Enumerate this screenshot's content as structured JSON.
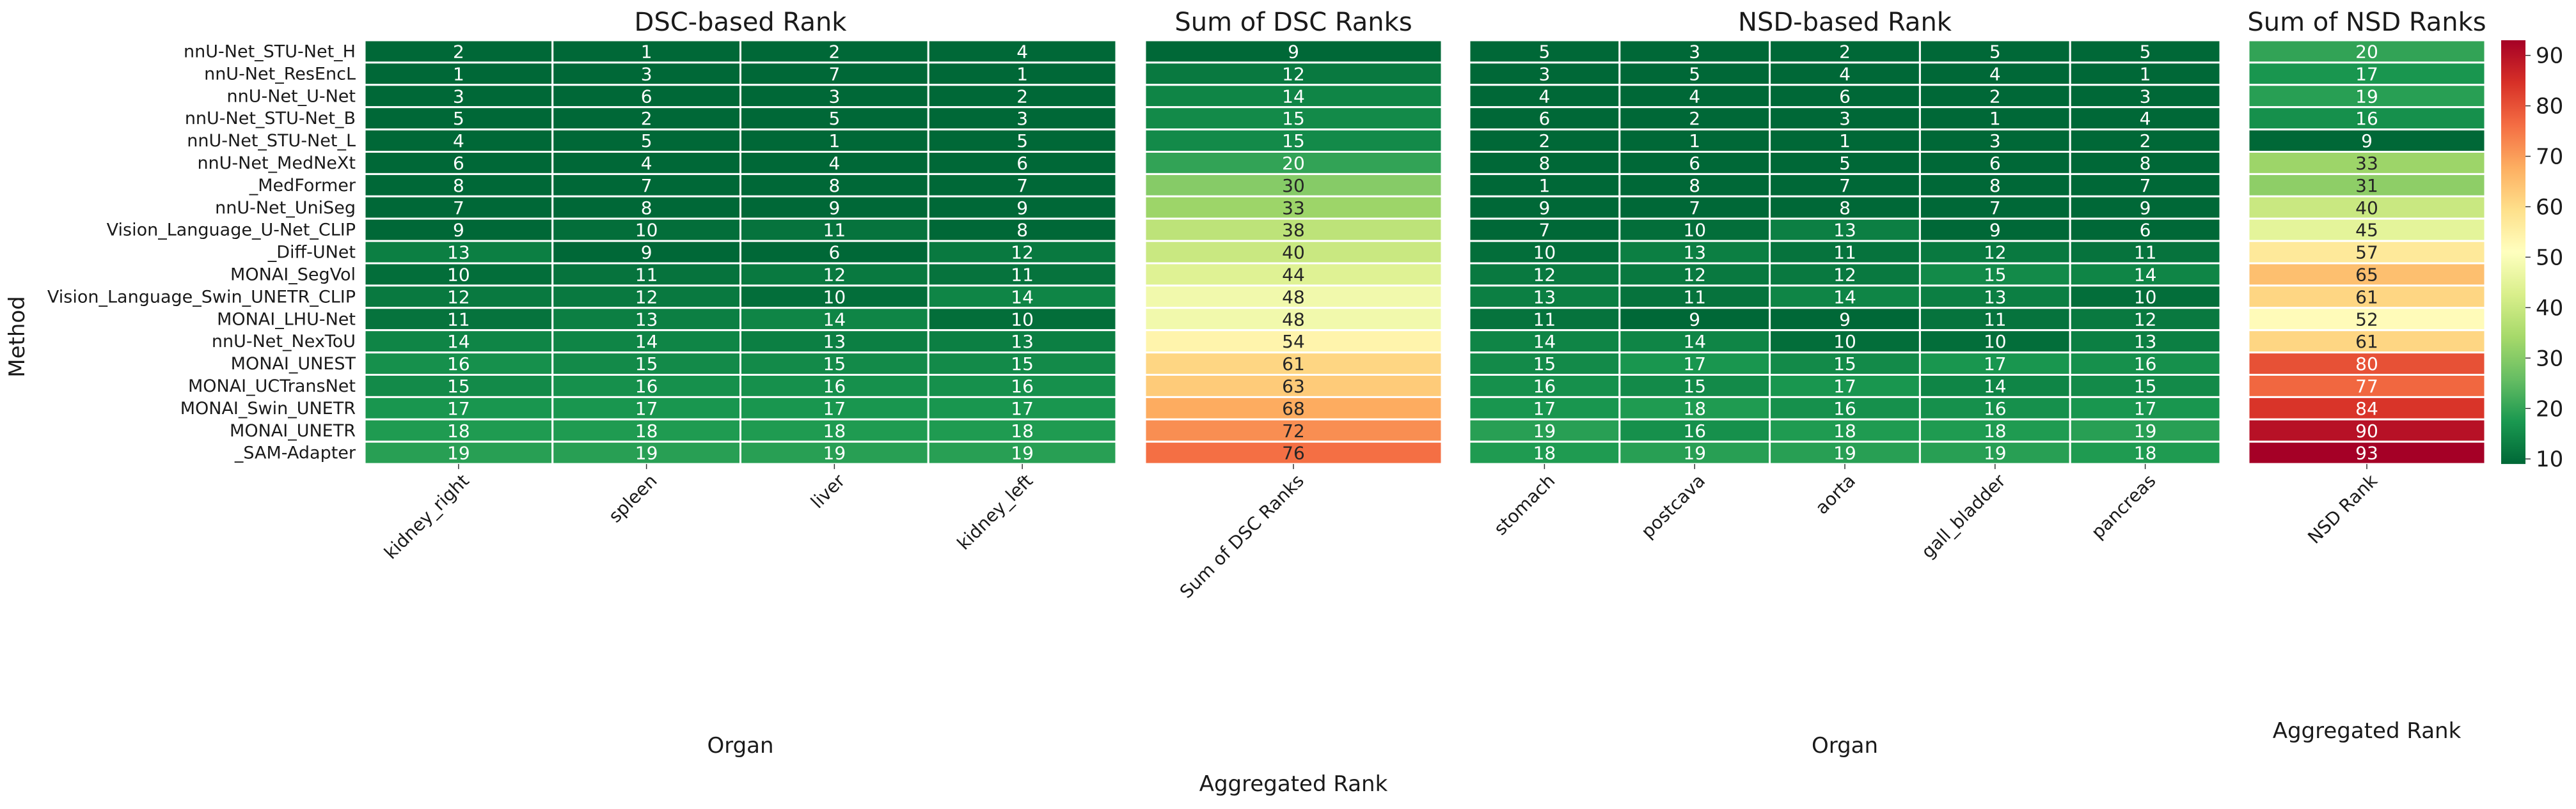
{
  "chart_data": {
    "type": "heatmap",
    "y_axis_label": "Method",
    "methods": [
      "nnU-Net_STU-Net_H",
      "nnU-Net_ResEncL",
      "nnU-Net_U-Net",
      "nnU-Net_STU-Net_B",
      "nnU-Net_STU-Net_L",
      "nnU-Net_MedNeXt",
      "_MedFormer",
      "nnU-Net_UniSeg",
      "Vision_Language_U-Net_CLIP",
      "_Diff-UNet",
      "MONAI_SegVol",
      "Vision_Language_Swin_UNETR_CLIP",
      "MONAI_LHU-Net",
      "nnU-Net_NexToU",
      "MONAI_UNEST",
      "MONAI_UCTransNet",
      "MONAI_Swin_UNETR",
      "MONAI_UNETR",
      "_SAM-Adapter"
    ],
    "panels": [
      {
        "title": "DSC-based Rank",
        "xlabel": "Organ",
        "columns": [
          "kidney_right",
          "spleen",
          "liver",
          "kidney_left"
        ],
        "values": [
          [
            2,
            1,
            2,
            4
          ],
          [
            1,
            3,
            7,
            1
          ],
          [
            3,
            6,
            3,
            2
          ],
          [
            5,
            2,
            5,
            3
          ],
          [
            4,
            5,
            1,
            5
          ],
          [
            6,
            4,
            4,
            6
          ],
          [
            8,
            7,
            8,
            7
          ],
          [
            7,
            8,
            9,
            9
          ],
          [
            9,
            10,
            11,
            8
          ],
          [
            13,
            9,
            6,
            12
          ],
          [
            10,
            11,
            12,
            11
          ],
          [
            12,
            12,
            10,
            14
          ],
          [
            11,
            13,
            14,
            10
          ],
          [
            14,
            14,
            13,
            13
          ],
          [
            16,
            15,
            15,
            15
          ],
          [
            15,
            16,
            16,
            16
          ],
          [
            17,
            17,
            17,
            17
          ],
          [
            18,
            18,
            18,
            18
          ],
          [
            19,
            19,
            19,
            19
          ]
        ]
      },
      {
        "title": "Sum of DSC Ranks",
        "xlabel": "Aggregated Rank",
        "columns": [
          "Sum of DSC Ranks"
        ],
        "values": [
          [
            9
          ],
          [
            12
          ],
          [
            14
          ],
          [
            15
          ],
          [
            15
          ],
          [
            20
          ],
          [
            30
          ],
          [
            33
          ],
          [
            38
          ],
          [
            40
          ],
          [
            44
          ],
          [
            48
          ],
          [
            48
          ],
          [
            54
          ],
          [
            61
          ],
          [
            63
          ],
          [
            68
          ],
          [
            72
          ],
          [
            76
          ]
        ]
      },
      {
        "title": "NSD-based Rank",
        "xlabel": "Organ",
        "columns": [
          "stomach",
          "postcava",
          "aorta",
          "gall_bladder",
          "pancreas"
        ],
        "values": [
          [
            5,
            3,
            2,
            5,
            5
          ],
          [
            3,
            5,
            4,
            4,
            1
          ],
          [
            4,
            4,
            6,
            2,
            3
          ],
          [
            6,
            2,
            3,
            1,
            4
          ],
          [
            2,
            1,
            1,
            3,
            2
          ],
          [
            8,
            6,
            5,
            6,
            8
          ],
          [
            1,
            8,
            7,
            8,
            7
          ],
          [
            9,
            7,
            8,
            7,
            9
          ],
          [
            7,
            10,
            13,
            9,
            6
          ],
          [
            10,
            13,
            11,
            12,
            11
          ],
          [
            12,
            12,
            12,
            15,
            14
          ],
          [
            13,
            11,
            14,
            13,
            10
          ],
          [
            11,
            9,
            9,
            11,
            12
          ],
          [
            14,
            14,
            10,
            10,
            13
          ],
          [
            15,
            17,
            15,
            17,
            16
          ],
          [
            16,
            15,
            17,
            14,
            15
          ],
          [
            17,
            18,
            16,
            16,
            17
          ],
          [
            19,
            16,
            18,
            18,
            19
          ],
          [
            18,
            19,
            19,
            19,
            18
          ]
        ]
      },
      {
        "title": "Sum of NSD Ranks",
        "xlabel": "Aggregated Rank",
        "columns": [
          "NSD Rank"
        ],
        "values": [
          [
            20
          ],
          [
            17
          ],
          [
            19
          ],
          [
            16
          ],
          [
            9
          ],
          [
            33
          ],
          [
            31
          ],
          [
            40
          ],
          [
            45
          ],
          [
            57
          ],
          [
            65
          ],
          [
            61
          ],
          [
            52
          ],
          [
            61
          ],
          [
            80
          ],
          [
            77
          ],
          [
            84
          ],
          [
            90
          ],
          [
            93
          ]
        ]
      }
    ],
    "colorbar": {
      "colormap": "RdYlGn_r",
      "ticks": [
        10,
        20,
        30,
        40,
        50,
        60,
        70,
        80,
        90
      ],
      "range": [
        9,
        93
      ]
    }
  }
}
